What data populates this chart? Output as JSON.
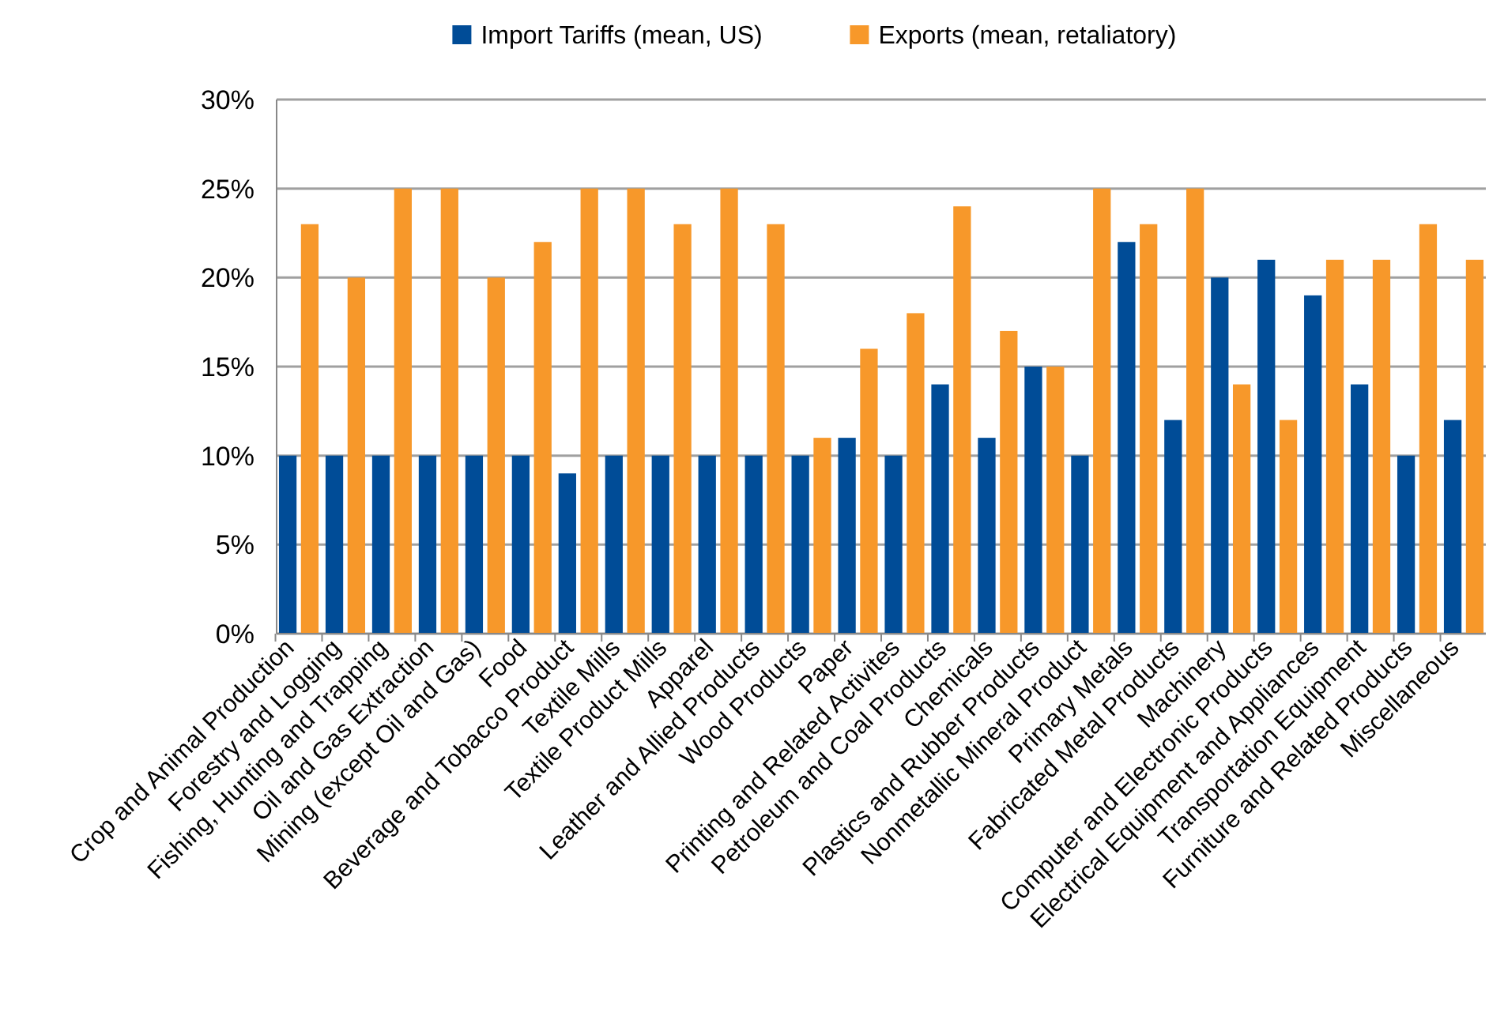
{
  "chart_data": {
    "type": "bar",
    "categories": [
      "Crop and Animal Production",
      "Forestry and Logging",
      "Fishing, Hunting and Trapping",
      "Oil and Gas Extraction",
      "Mining (except Oil and Gas)",
      "Food",
      "Beverage and Tobacco Product",
      "Textile Mills",
      "Textile Product Mills",
      "Apparel",
      "Leather and Allied Products",
      "Wood Products",
      "Paper",
      "Printing and Related Activites",
      "Petroleum and Coal Products",
      "Chemicals",
      "Plastics and Rubber Products",
      "Nonmetallic Mineral Product",
      "Primary Metals",
      "Fabricated Metal Products",
      "Machinery",
      "Computer and Electronic Products",
      "Electrical Equipment and Appliances",
      "Transportation Equipment",
      "Furniture and Related Products",
      "Miscellaneous"
    ],
    "series": [
      {
        "name": "Import Tariffs (mean, US)",
        "color": "#004c97",
        "values": [
          10,
          10,
          10,
          10,
          10,
          10,
          9,
          10,
          10,
          10,
          10,
          10,
          11,
          10,
          14,
          11,
          15,
          10,
          22,
          12,
          20,
          21,
          19,
          14,
          10,
          12
        ]
      },
      {
        "name": "Exports (mean, retaliatory)",
        "color": "#f7982a",
        "values": [
          23,
          20,
          25,
          25,
          20,
          22,
          25,
          25,
          23,
          25,
          23,
          11,
          16,
          18,
          24,
          17,
          15,
          25,
          23,
          25,
          14,
          12,
          21,
          21,
          23,
          21
        ]
      }
    ],
    "ylim": [
      0,
      30
    ],
    "yticks": [
      {
        "value": 0,
        "label": "0%"
      },
      {
        "value": 5,
        "label": "5%"
      },
      {
        "value": 10,
        "label": "10%"
      },
      {
        "value": 15,
        "label": "15%"
      },
      {
        "value": 20,
        "label": "20%"
      },
      {
        "value": 25,
        "label": "25%"
      },
      {
        "value": 30,
        "label": "30%"
      }
    ],
    "grid": "y",
    "legend": "top"
  }
}
